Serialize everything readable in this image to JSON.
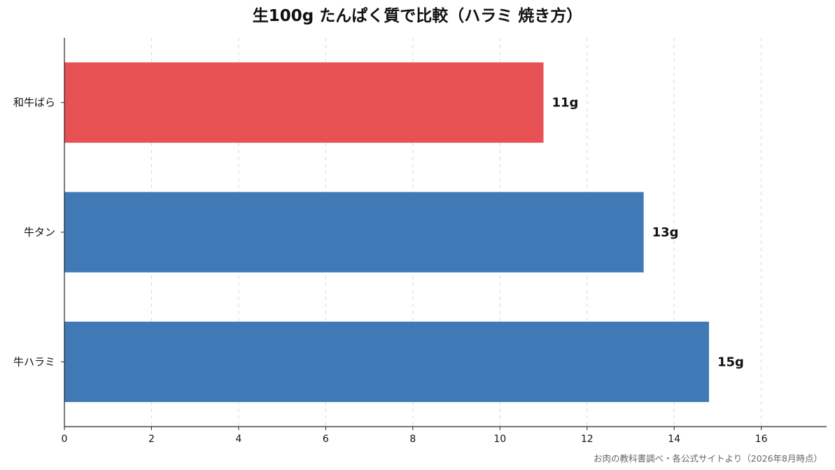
{
  "chart_data": {
    "type": "bar",
    "orientation": "horizontal",
    "title": "生100g たんぱく質で比較（ハラミ 焼き方）",
    "xlabel": "",
    "ylabel": "",
    "categories": [
      "和牛ばら",
      "牛タン",
      "牛ハラミ"
    ],
    "values": [
      11,
      13.3,
      14.8
    ],
    "value_labels": [
      "11g",
      "13g",
      "15g"
    ],
    "bar_colors": [
      "#e85153",
      "#3f7ab6",
      "#3f7ab6"
    ],
    "xlim": [
      0,
      17.5
    ],
    "xticks": [
      0,
      2,
      4,
      6,
      8,
      10,
      12,
      14,
      16
    ],
    "xtick_labels": [
      "0",
      "2",
      "4",
      "6",
      "8",
      "10",
      "12",
      "14",
      "16"
    ],
    "grid": "vertical dashed",
    "legend": "none",
    "source": "お肉の教科書調べ・各公式サイトより（2026年8月時点）"
  }
}
